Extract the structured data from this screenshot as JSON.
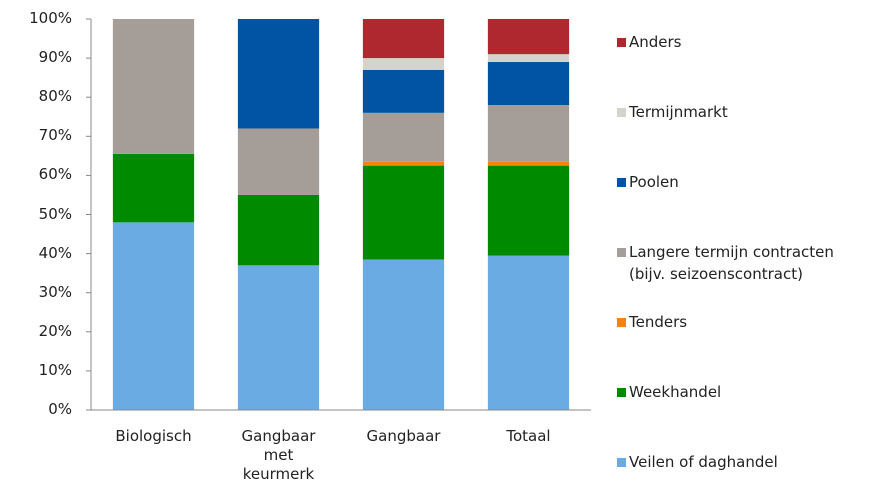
{
  "chart_data": {
    "type": "stacked_bar",
    "categories": [
      "Biologisch",
      "Gangbaar\nmet\nkeurmerk",
      "Gangbaar",
      "Totaal"
    ],
    "series": [
      {
        "name": "Veilen of daghandel",
        "color": "#6aabe3",
        "values": [
          48,
          37,
          38.5,
          39.5
        ]
      },
      {
        "name": "Weekhandel",
        "color": "#008a00",
        "values": [
          17.5,
          18,
          24,
          23
        ]
      },
      {
        "name": "Tenders",
        "color": "#f7820f",
        "values": [
          0,
          0,
          1,
          1
        ]
      },
      {
        "name": "Langere termijn contracten\n(bijv. seizoenscontract)",
        "color": "#a59e98",
        "values": [
          34.5,
          17,
          12.5,
          14.5
        ]
      },
      {
        "name": "Poolen",
        "color": "#0054a3",
        "values": [
          0,
          28,
          11,
          11
        ]
      },
      {
        "name": "Termijnmarkt",
        "color": "#d6d3cc",
        "values": [
          0,
          0,
          3,
          2
        ]
      },
      {
        "name": "Anders",
        "color": "#b0282f",
        "values": [
          0,
          0,
          10,
          9
        ]
      }
    ],
    "ylim": [
      0,
      100
    ],
    "yticks": [
      {
        "value": 0,
        "label": "0%"
      },
      {
        "value": 10,
        "label": "10%"
      },
      {
        "value": 20,
        "label": "20%"
      },
      {
        "value": 30,
        "label": "30%"
      },
      {
        "value": 40,
        "label": "40%"
      },
      {
        "value": 50,
        "label": "50%"
      },
      {
        "value": 60,
        "label": "60%"
      },
      {
        "value": 70,
        "label": "70%"
      },
      {
        "value": 80,
        "label": "80%"
      },
      {
        "value": 90,
        "label": "90%"
      },
      {
        "value": 100,
        "label": "100%"
      }
    ],
    "legend": "right"
  }
}
